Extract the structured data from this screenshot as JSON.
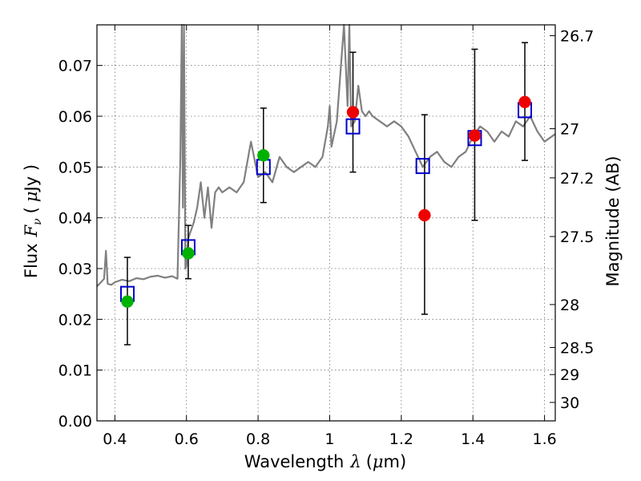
{
  "chart_data": {
    "type": "scatter",
    "xlabel": {
      "text": "Wavelength",
      "symbol": "λ",
      "unit_open": "(",
      "unit_mu": "μ",
      "unit_rest": "m)"
    },
    "ylabel": {
      "text": "Flux",
      "symbol": "F",
      "subscript": "ν",
      "unit_open": "(",
      "unit_mu": "μ",
      "unit_rest": "Jy )"
    },
    "y2label": "Magnitude (AB)",
    "xlim": [
      0.35,
      1.63
    ],
    "ylim": [
      0.0,
      0.078
    ],
    "grid": true,
    "xticks": [
      {
        "value": 0.4,
        "label": "0.4"
      },
      {
        "value": 0.6,
        "label": "0.6"
      },
      {
        "value": 0.8,
        "label": "0.8"
      },
      {
        "value": 1.0,
        "label": "1"
      },
      {
        "value": 1.2,
        "label": "1.2"
      },
      {
        "value": 1.4,
        "label": "1.4"
      },
      {
        "value": 1.6,
        "label": "1.6"
      }
    ],
    "yticks": [
      {
        "value": 0.0,
        "label": "0.00"
      },
      {
        "value": 0.01,
        "label": "0.01"
      },
      {
        "value": 0.02,
        "label": "0.02"
      },
      {
        "value": 0.03,
        "label": "0.03"
      },
      {
        "value": 0.04,
        "label": "0.04"
      },
      {
        "value": 0.05,
        "label": "0.05"
      },
      {
        "value": 0.06,
        "label": "0.06"
      },
      {
        "value": 0.07,
        "label": "0.07"
      }
    ],
    "y2ticks": [
      {
        "value": 26.7,
        "label": "26.7"
      },
      {
        "value": 27.0,
        "label": "27"
      },
      {
        "value": 27.2,
        "label": "27.2"
      },
      {
        "value": 27.5,
        "label": "27.5"
      },
      {
        "value": 28.0,
        "label": "28"
      },
      {
        "value": 28.5,
        "label": "28.5"
      },
      {
        "value": 29.0,
        "label": "29"
      },
      {
        "value": 30.0,
        "label": "30"
      }
    ],
    "series": [
      {
        "name": "model spectrum",
        "kind": "line",
        "color": "#808080",
        "x": [
          0.35,
          0.36,
          0.37,
          0.375,
          0.38,
          0.39,
          0.4,
          0.42,
          0.44,
          0.46,
          0.48,
          0.5,
          0.52,
          0.54,
          0.56,
          0.575,
          0.583,
          0.587,
          0.59,
          0.593,
          0.597,
          0.6,
          0.605,
          0.61,
          0.62,
          0.63,
          0.64,
          0.65,
          0.66,
          0.67,
          0.68,
          0.69,
          0.7,
          0.72,
          0.74,
          0.76,
          0.78,
          0.8,
          0.82,
          0.84,
          0.86,
          0.88,
          0.9,
          0.92,
          0.94,
          0.96,
          0.98,
          0.995,
          1.0,
          1.005,
          1.02,
          1.04,
          1.05,
          1.055,
          1.06,
          1.07,
          1.08,
          1.09,
          1.1,
          1.11,
          1.12,
          1.14,
          1.16,
          1.18,
          1.2,
          1.22,
          1.24,
          1.26,
          1.28,
          1.3,
          1.32,
          1.34,
          1.36,
          1.38,
          1.4,
          1.42,
          1.44,
          1.46,
          1.48,
          1.5,
          1.52,
          1.54,
          1.56,
          1.58,
          1.6,
          1.63
        ],
        "y": [
          0.0265,
          0.0272,
          0.028,
          0.0335,
          0.027,
          0.0268,
          0.0273,
          0.0278,
          0.0275,
          0.0281,
          0.0279,
          0.0284,
          0.0286,
          0.0282,
          0.0285,
          0.028,
          0.052,
          0.078,
          0.042,
          0.078,
          0.03,
          0.0305,
          0.036,
          0.037,
          0.039,
          0.042,
          0.047,
          0.04,
          0.046,
          0.038,
          0.045,
          0.046,
          0.045,
          0.046,
          0.045,
          0.047,
          0.055,
          0.048,
          0.049,
          0.047,
          0.052,
          0.05,
          0.049,
          0.05,
          0.051,
          0.05,
          0.052,
          0.058,
          0.062,
          0.054,
          0.059,
          0.078,
          0.062,
          0.078,
          0.058,
          0.059,
          0.066,
          0.061,
          0.06,
          0.061,
          0.06,
          0.059,
          0.058,
          0.059,
          0.058,
          0.056,
          0.053,
          0.05,
          0.052,
          0.053,
          0.051,
          0.05,
          0.052,
          0.053,
          0.056,
          0.058,
          0.057,
          0.055,
          0.057,
          0.056,
          0.059,
          0.058,
          0.06,
          0.057,
          0.055,
          0.0565
        ]
      },
      {
        "name": "model photometry",
        "kind": "open-square",
        "color": "#0000cc",
        "x": [
          0.435,
          0.605,
          0.815,
          1.065,
          1.26,
          1.405,
          1.545
        ],
        "y": [
          0.025,
          0.0342,
          0.05,
          0.058,
          0.0502,
          0.0557,
          0.0612
        ]
      },
      {
        "name": "observed (green)",
        "kind": "filled-circle",
        "color": "#00b200",
        "x": [
          0.435,
          0.605,
          0.815
        ],
        "y": [
          0.0235,
          0.033,
          0.0523
        ],
        "err_low": [
          0.0085,
          0.005,
          0.0093
        ],
        "err_high": [
          0.0087,
          0.0055,
          0.0093
        ]
      },
      {
        "name": "observed (red)",
        "kind": "filled-circle",
        "color": "#ee0000",
        "x": [
          1.065,
          1.265,
          1.405,
          1.545
        ],
        "y": [
          0.0608,
          0.0405,
          0.0562,
          0.0628
        ],
        "err_low": [
          0.0118,
          0.0195,
          0.0167,
          0.0115
        ],
        "err_high": [
          0.0118,
          0.0198,
          0.017,
          0.0117
        ]
      }
    ]
  }
}
